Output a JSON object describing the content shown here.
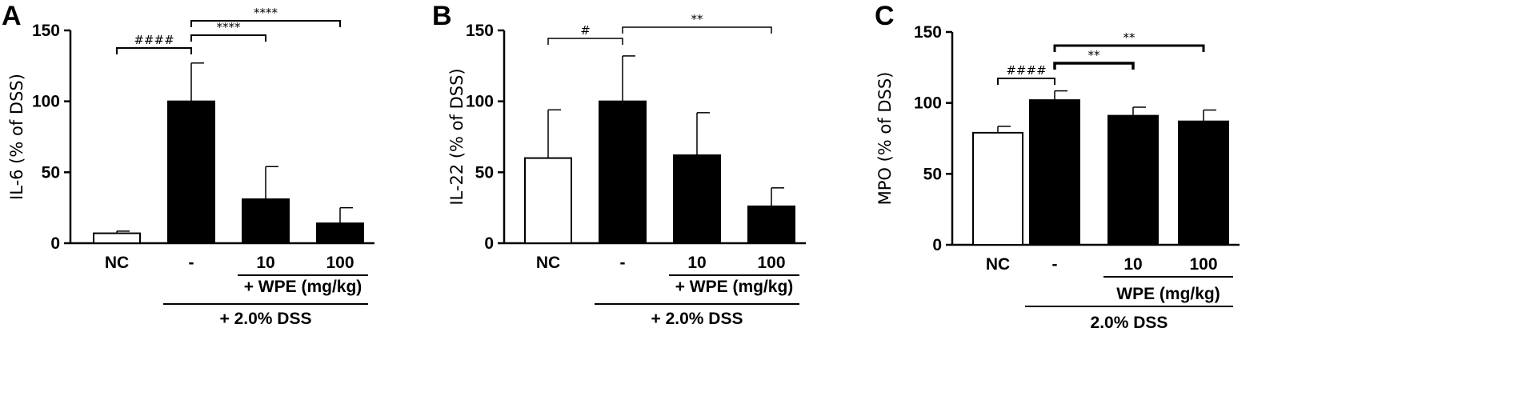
{
  "chart_data": [
    {
      "type": "bar",
      "panel": "A",
      "ylabel": "IL-6 (% of DSS)",
      "ylim": [
        0,
        150
      ],
      "yticks": [
        "0",
        "50",
        "100",
        "150"
      ],
      "categories": [
        "NC",
        "-",
        "10",
        "100"
      ],
      "values": [
        7,
        100,
        31,
        14
      ],
      "errors": [
        1.5,
        27,
        23,
        11
      ],
      "fills": [
        "#ffffff",
        "#000000",
        "#000000",
        "#000000"
      ],
      "group_labels": [
        {
          "text": "+ WPE (mg/kg)",
          "from": 2,
          "to": 3,
          "level": 1
        },
        {
          "text": "+ 2.0% DSS",
          "from": 1,
          "to": 3,
          "level": 2
        }
      ],
      "significance": [
        {
          "from": 0,
          "to": 1,
          "label": "####"
        },
        {
          "from": 1,
          "to": 2,
          "label": "****"
        },
        {
          "from": 1,
          "to": 3,
          "label": "****"
        }
      ]
    },
    {
      "type": "bar",
      "panel": "B",
      "ylabel": "IL-22 (% of DSS)",
      "ylim": [
        0,
        150
      ],
      "yticks": [
        "0",
        "50",
        "100",
        "150"
      ],
      "categories": [
        "NC",
        "-",
        "10",
        "100"
      ],
      "values": [
        60,
        100,
        62,
        26
      ],
      "errors": [
        34,
        32,
        30,
        13
      ],
      "fills": [
        "#ffffff",
        "#000000",
        "#000000",
        "#000000"
      ],
      "group_labels": [
        {
          "text": "+ WPE (mg/kg)",
          "from": 2,
          "to": 3,
          "level": 1
        },
        {
          "text": "+ 2.0% DSS",
          "from": 1,
          "to": 3,
          "level": 2
        }
      ],
      "significance": [
        {
          "from": 0,
          "to": 1,
          "label": "#"
        },
        {
          "from": 1,
          "to": 3,
          "label": "**"
        }
      ]
    },
    {
      "type": "bar",
      "panel": "C",
      "ylabel": "MPO (% of DSS)",
      "ylim": [
        0,
        150
      ],
      "yticks": [
        "0",
        "50",
        "100",
        "150"
      ],
      "categories": [
        "NC",
        "-",
        "10",
        "100"
      ],
      "values": [
        79,
        102,
        91,
        87
      ],
      "errors": [
        4.5,
        6.5,
        6,
        8
      ],
      "fills": [
        "#ffffff",
        "#000000",
        "#000000",
        "#000000"
      ],
      "group_labels": [
        {
          "text": "WPE (mg/kg)",
          "from": 2,
          "to": 3,
          "level": 1
        },
        {
          "text": "2.0% DSS",
          "from": 1,
          "to": 3,
          "level": 2
        }
      ],
      "significance": [
        {
          "from": 0,
          "to": 1,
          "label": "####"
        },
        {
          "from": 1,
          "to": 2,
          "label": "**"
        },
        {
          "from": 1,
          "to": 3,
          "label": "**"
        }
      ]
    }
  ]
}
